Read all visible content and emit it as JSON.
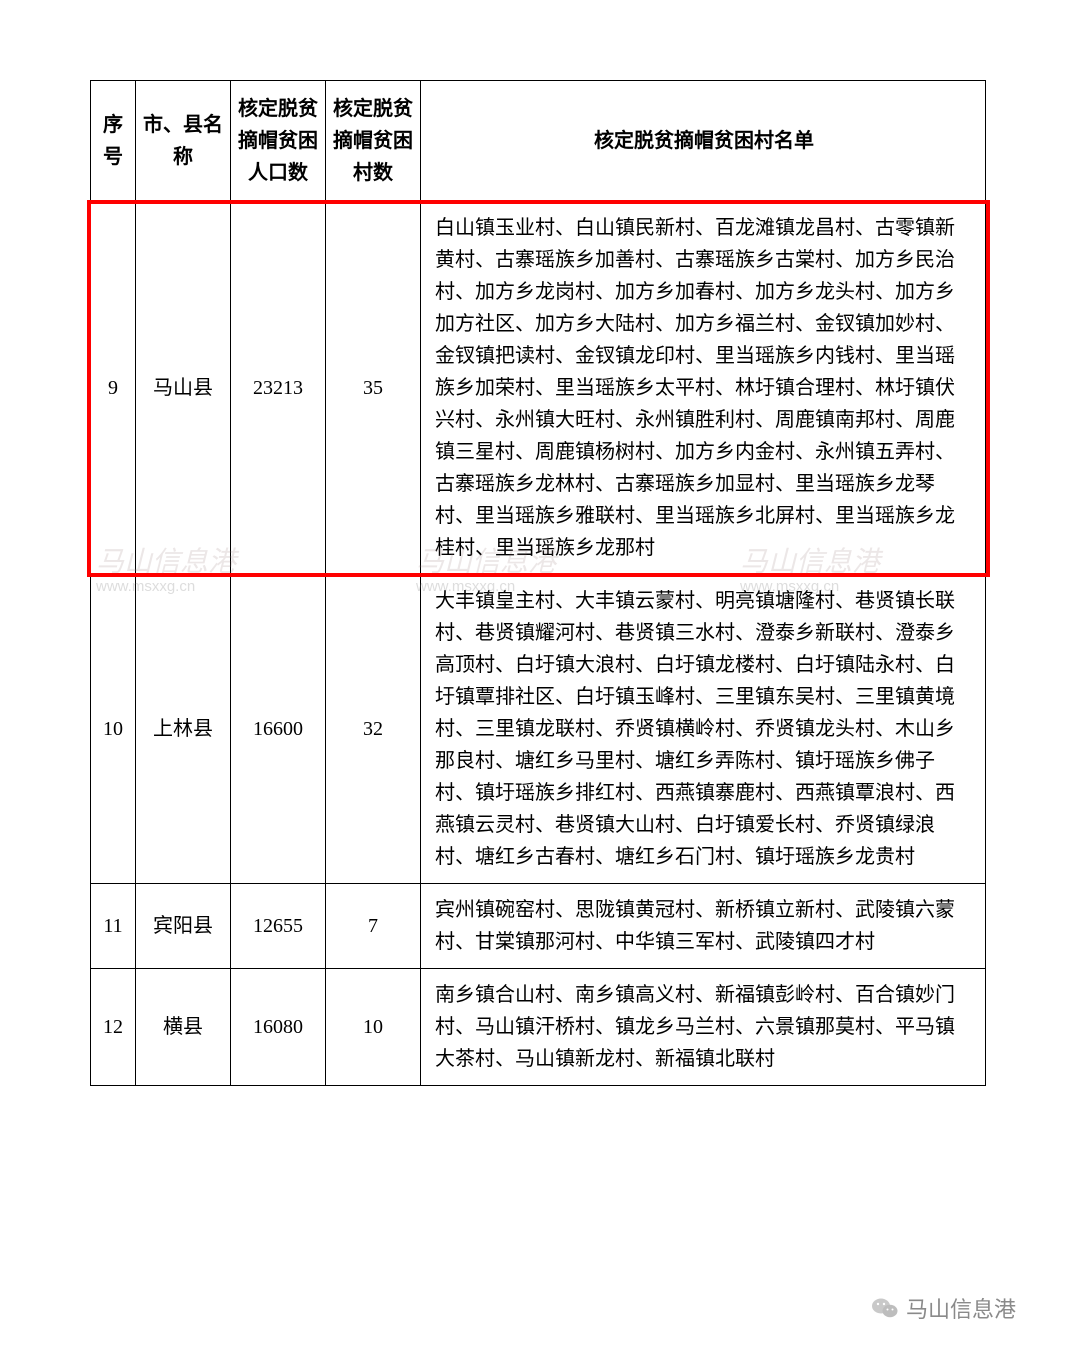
{
  "table": {
    "headers": {
      "seq": "序号",
      "county": "市、县名称",
      "population": "核定脱贫摘帽贫困人口数",
      "village_count": "核定脱贫摘帽贫困村数",
      "village_list": "核定脱贫摘帽贫困村名单"
    },
    "rows": [
      {
        "seq": "9",
        "county": "马山县",
        "population": "23213",
        "village_count": "35",
        "village_list": "白山镇玉业村、白山镇民新村、百龙滩镇龙昌村、古零镇新黄村、古寨瑶族乡加善村、古寨瑶族乡古棠村、加方乡民治村、加方乡龙岗村、加方乡加春村、加方乡龙头村、加方乡加方社区、加方乡大陆村、加方乡福兰村、金钗镇加妙村、金钗镇把读村、金钗镇龙印村、里当瑶族乡内钱村、里当瑶族乡加荣村、里当瑶族乡太平村、林圩镇合理村、林圩镇伏兴村、永州镇大旺村、永州镇胜利村、周鹿镇南邦村、周鹿镇三星村、周鹿镇杨树村、加方乡内金村、永州镇五弄村、古寨瑶族乡龙林村、古寨瑶族乡加显村、里当瑶族乡龙琴村、里当瑶族乡雅联村、里当瑶族乡北屏村、里当瑶族乡龙桂村、里当瑶族乡龙那村"
      },
      {
        "seq": "10",
        "county": "上林县",
        "population": "16600",
        "village_count": "32",
        "village_list": "大丰镇皇主村、大丰镇云蒙村、明亮镇塘隆村、巷贤镇长联村、巷贤镇耀河村、巷贤镇三水村、澄泰乡新联村、澄泰乡高顶村、白圩镇大浪村、白圩镇龙楼村、白圩镇陆永村、白圩镇覃排社区、白圩镇玉峰村、三里镇东吴村、三里镇黄境村、三里镇龙联村、乔贤镇横岭村、乔贤镇龙头村、木山乡那良村、塘红乡马里村、塘红乡弄陈村、镇圩瑶族乡佛子村、镇圩瑶族乡排红村、西燕镇寨鹿村、西燕镇覃浪村、西燕镇云灵村、巷贤镇大山村、白圩镇爱长村、乔贤镇绿浪村、塘红乡古春村、塘红乡石门村、镇圩瑶族乡龙贵村"
      },
      {
        "seq": "11",
        "county": "宾阳县",
        "population": "12655",
        "village_count": "7",
        "village_list": "宾州镇碗窑村、思陇镇黄冠村、新桥镇立新村、武陵镇六蒙村、甘棠镇那河村、中华镇三军村、武陵镇四才村"
      },
      {
        "seq": "12",
        "county": "横县",
        "population": "16080",
        "village_count": "10",
        "village_list": "南乡镇合山村、南乡镇高义村、新福镇彭岭村、百合镇妙门村、马山镇汗桥村、镇龙乡马兰村、六景镇那莫村、平马镇大茶村、马山镇新龙村、新福镇北联村"
      }
    ],
    "highlight_row_index": 0,
    "colors": {
      "border": "#000000",
      "text": "#000000",
      "highlight_border": "#ff0000",
      "background": "#ffffff",
      "watermark": "rgba(120,120,120,0.25)",
      "footer_text": "#8a8a8a"
    }
  },
  "watermarks": {
    "url": "www.msxxg.cn",
    "brand": "马山信息港"
  },
  "footer": {
    "source_label": "马山信息港",
    "icon_name": "wechat-icon"
  }
}
